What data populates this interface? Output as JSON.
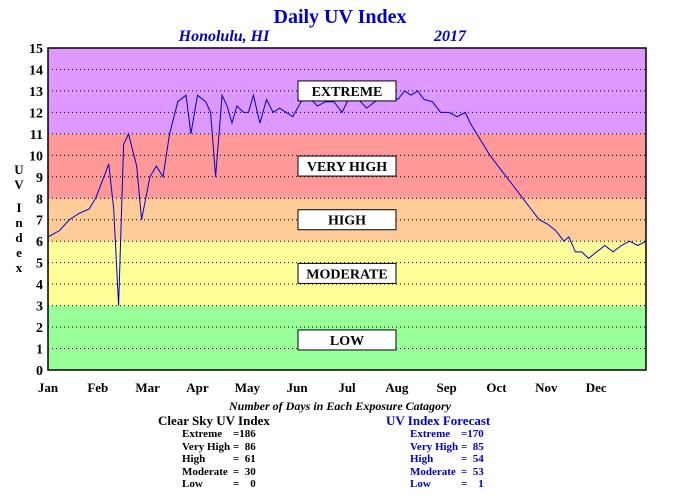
{
  "chart_data": {
    "type": "line",
    "title": "Daily UV Index",
    "location": "Honolulu, HI",
    "year": "2017",
    "ylabel": "UV Index",
    "ylim": [
      0,
      15
    ],
    "yticks": [
      "0",
      "1",
      "2",
      "3",
      "4",
      "5",
      "6",
      "7",
      "8",
      "9",
      "10",
      "11",
      "12",
      "13",
      "14",
      "15"
    ],
    "xlabels": [
      "Jan",
      "Feb",
      "Mar",
      "Apr",
      "May",
      "Jun",
      "Jul",
      "Aug",
      "Sep",
      "Oct",
      "Nov",
      "Dec"
    ],
    "bands": [
      {
        "label": "LOW",
        "from": 0,
        "to": 3,
        "color": "#99ff99"
      },
      {
        "label": "MODERATE",
        "from": 3,
        "to": 6,
        "color": "#ffff99"
      },
      {
        "label": "HIGH",
        "from": 6,
        "to": 8,
        "color": "#ffcc99"
      },
      {
        "label": "VERY HIGH",
        "from": 8,
        "to": 11,
        "color": "#ff9999"
      },
      {
        "label": "EXTREME",
        "from": 11,
        "to": 15,
        "color": "#dd99ff"
      }
    ],
    "grid": true,
    "series": [
      {
        "color": "#0000cc",
        "x": [
          1,
          8,
          14,
          20,
          26,
          30,
          35,
          38,
          41,
          44,
          47,
          50,
          55,
          58,
          63,
          67,
          71,
          75,
          80,
          85,
          88,
          92,
          97,
          100,
          103,
          107,
          110,
          113,
          116,
          120,
          123,
          126,
          130,
          134,
          138,
          142,
          146,
          150,
          155,
          160,
          165,
          170,
          175,
          180,
          185,
          190,
          195,
          200,
          205,
          210,
          214,
          218,
          222,
          226,
          230,
          235,
          240,
          245,
          250,
          255,
          258,
          262,
          266,
          270,
          275,
          280,
          285,
          290,
          295,
          300,
          305,
          310,
          315,
          318,
          322,
          326,
          330,
          335,
          340,
          345,
          350,
          355,
          360,
          365
        ],
        "y": [
          6.2,
          6.5,
          7.0,
          7.3,
          7.5,
          8.0,
          9.0,
          9.6,
          7.5,
          3.0,
          10.5,
          11.0,
          9.5,
          7.0,
          9.0,
          9.5,
          9.0,
          11.0,
          12.5,
          12.8,
          11.0,
          12.8,
          12.5,
          12.0,
          9.0,
          12.8,
          12.3,
          11.5,
          12.3,
          12.0,
          12.0,
          12.8,
          11.5,
          12.6,
          12.0,
          12.2,
          12.0,
          11.8,
          12.5,
          12.7,
          12.3,
          12.5,
          12.5,
          12.0,
          12.8,
          12.6,
          12.2,
          12.5,
          12.7,
          12.8,
          12.6,
          13.0,
          12.8,
          13.0,
          12.6,
          12.5,
          12.0,
          12.0,
          11.8,
          12.0,
          11.5,
          11.0,
          10.5,
          10.0,
          9.5,
          9.0,
          8.5,
          8.0,
          7.5,
          7.0,
          6.8,
          6.5,
          6.0,
          6.2,
          5.5,
          5.5,
          5.2,
          5.5,
          5.8,
          5.5,
          5.8,
          6.0,
          5.8,
          6.0
        ]
      }
    ]
  },
  "stats": {
    "heading": "Number of Days in Each Exposure Catagory",
    "clear_sky": {
      "title": "Clear Sky UV Index",
      "rows": [
        {
          "label": "Extreme",
          "value": "186"
        },
        {
          "label": "Very High",
          "value": "86"
        },
        {
          "label": "High",
          "value": "61"
        },
        {
          "label": "Moderate",
          "value": "30"
        },
        {
          "label": "Low",
          "value": "0"
        }
      ]
    },
    "forecast": {
      "title": "UV Index Forecast",
      "rows": [
        {
          "label": "Extreme",
          "value": "170"
        },
        {
          "label": "Very High",
          "value": "85"
        },
        {
          "label": "High",
          "value": "54"
        },
        {
          "label": "Moderate",
          "value": "53"
        },
        {
          "label": "Low",
          "value": "1"
        }
      ]
    }
  }
}
